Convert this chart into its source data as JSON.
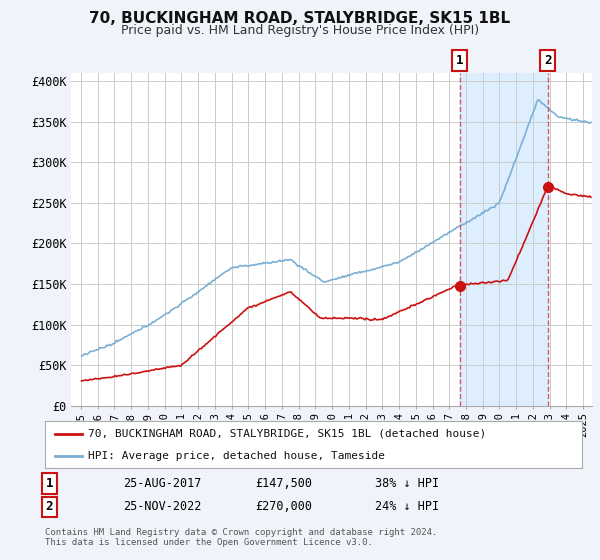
{
  "title": "70, BUCKINGHAM ROAD, STALYBRIDGE, SK15 1BL",
  "subtitle": "Price paid vs. HM Land Registry's House Price Index (HPI)",
  "hpi_color": "#7bafd4",
  "price_color": "#cc1111",
  "dashed_color": "#cc4444",
  "annotation_box_color": "#cc1111",
  "highlight_color": "#ddeeff",
  "ylim": [
    0,
    410000
  ],
  "yticks": [
    0,
    50000,
    100000,
    150000,
    200000,
    250000,
    300000,
    350000,
    400000
  ],
  "ytick_labels": [
    "£0",
    "£50K",
    "£100K",
    "£150K",
    "£200K",
    "£250K",
    "£300K",
    "£350K",
    "£400K"
  ],
  "legend_label_price": "70, BUCKINGHAM ROAD, STALYBRIDGE, SK15 1BL (detached house)",
  "legend_label_hpi": "HPI: Average price, detached house, Tameside",
  "note1_label": "1",
  "note1_date": "25-AUG-2017",
  "note1_price": "£147,500",
  "note1_pct": "38% ↓ HPI",
  "note2_label": "2",
  "note2_date": "25-NOV-2022",
  "note2_price": "£270,000",
  "note2_pct": "24% ↓ HPI",
  "footer": "Contains HM Land Registry data © Crown copyright and database right 2024.\nThis data is licensed under the Open Government Licence v3.0.",
  "bg_color": "#f0f4fa",
  "plot_bg_color": "#ffffff",
  "grid_color": "#cccccc",
  "t1": 2017.622,
  "v1": 147500,
  "t2": 2022.874,
  "v2": 270000,
  "xlim_left": 1994.4,
  "xlim_right": 2025.5
}
